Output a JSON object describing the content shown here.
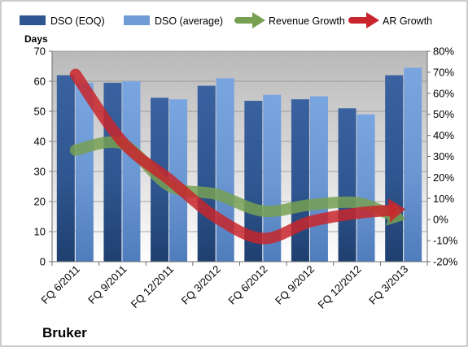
{
  "chart_data": {
    "type": "bar",
    "company": "Bruker",
    "categories": [
      "FQ 6/2011",
      "FQ 9/2011",
      "FQ 12/2011",
      "FQ 3/2012",
      "FQ 6/2012",
      "FQ 9/2012",
      "FQ 12/2012",
      "FQ 3/2013"
    ],
    "y_left": {
      "label": "Days",
      "range": [
        0,
        70
      ],
      "ticks": [
        0,
        10,
        20,
        30,
        40,
        50,
        60,
        70
      ]
    },
    "y_right": {
      "range": [
        -20,
        80
      ],
      "ticks": [
        "-20%",
        "-10%",
        "0%",
        "10%",
        "20%",
        "30%",
        "40%",
        "50%",
        "60%",
        "70%",
        "80%"
      ]
    },
    "grid": true,
    "legend_position": "top",
    "series": [
      {
        "name": "DSO (EOQ)",
        "kind": "bar",
        "axis": "left",
        "color": "#2f5690",
        "values": [
          62,
          59.5,
          54.5,
          58.5,
          53.5,
          54,
          51,
          62
        ]
      },
      {
        "name": "DSO (average)",
        "kind": "bar",
        "axis": "left",
        "color": "#6f9bd7",
        "values": [
          59.5,
          60,
          54,
          61,
          55.5,
          55,
          49,
          64.5
        ]
      },
      {
        "name": "Revenue Growth",
        "kind": "arrow-line",
        "axis": "right",
        "color": "#77a053",
        "values": [
          33,
          36,
          16,
          12,
          4,
          7,
          8,
          0
        ]
      },
      {
        "name": "AR Growth",
        "kind": "arrow-line",
        "axis": "right",
        "color": "#c8262c",
        "values": [
          69,
          37,
          19,
          1,
          -9,
          -1,
          3,
          5
        ]
      }
    ]
  }
}
